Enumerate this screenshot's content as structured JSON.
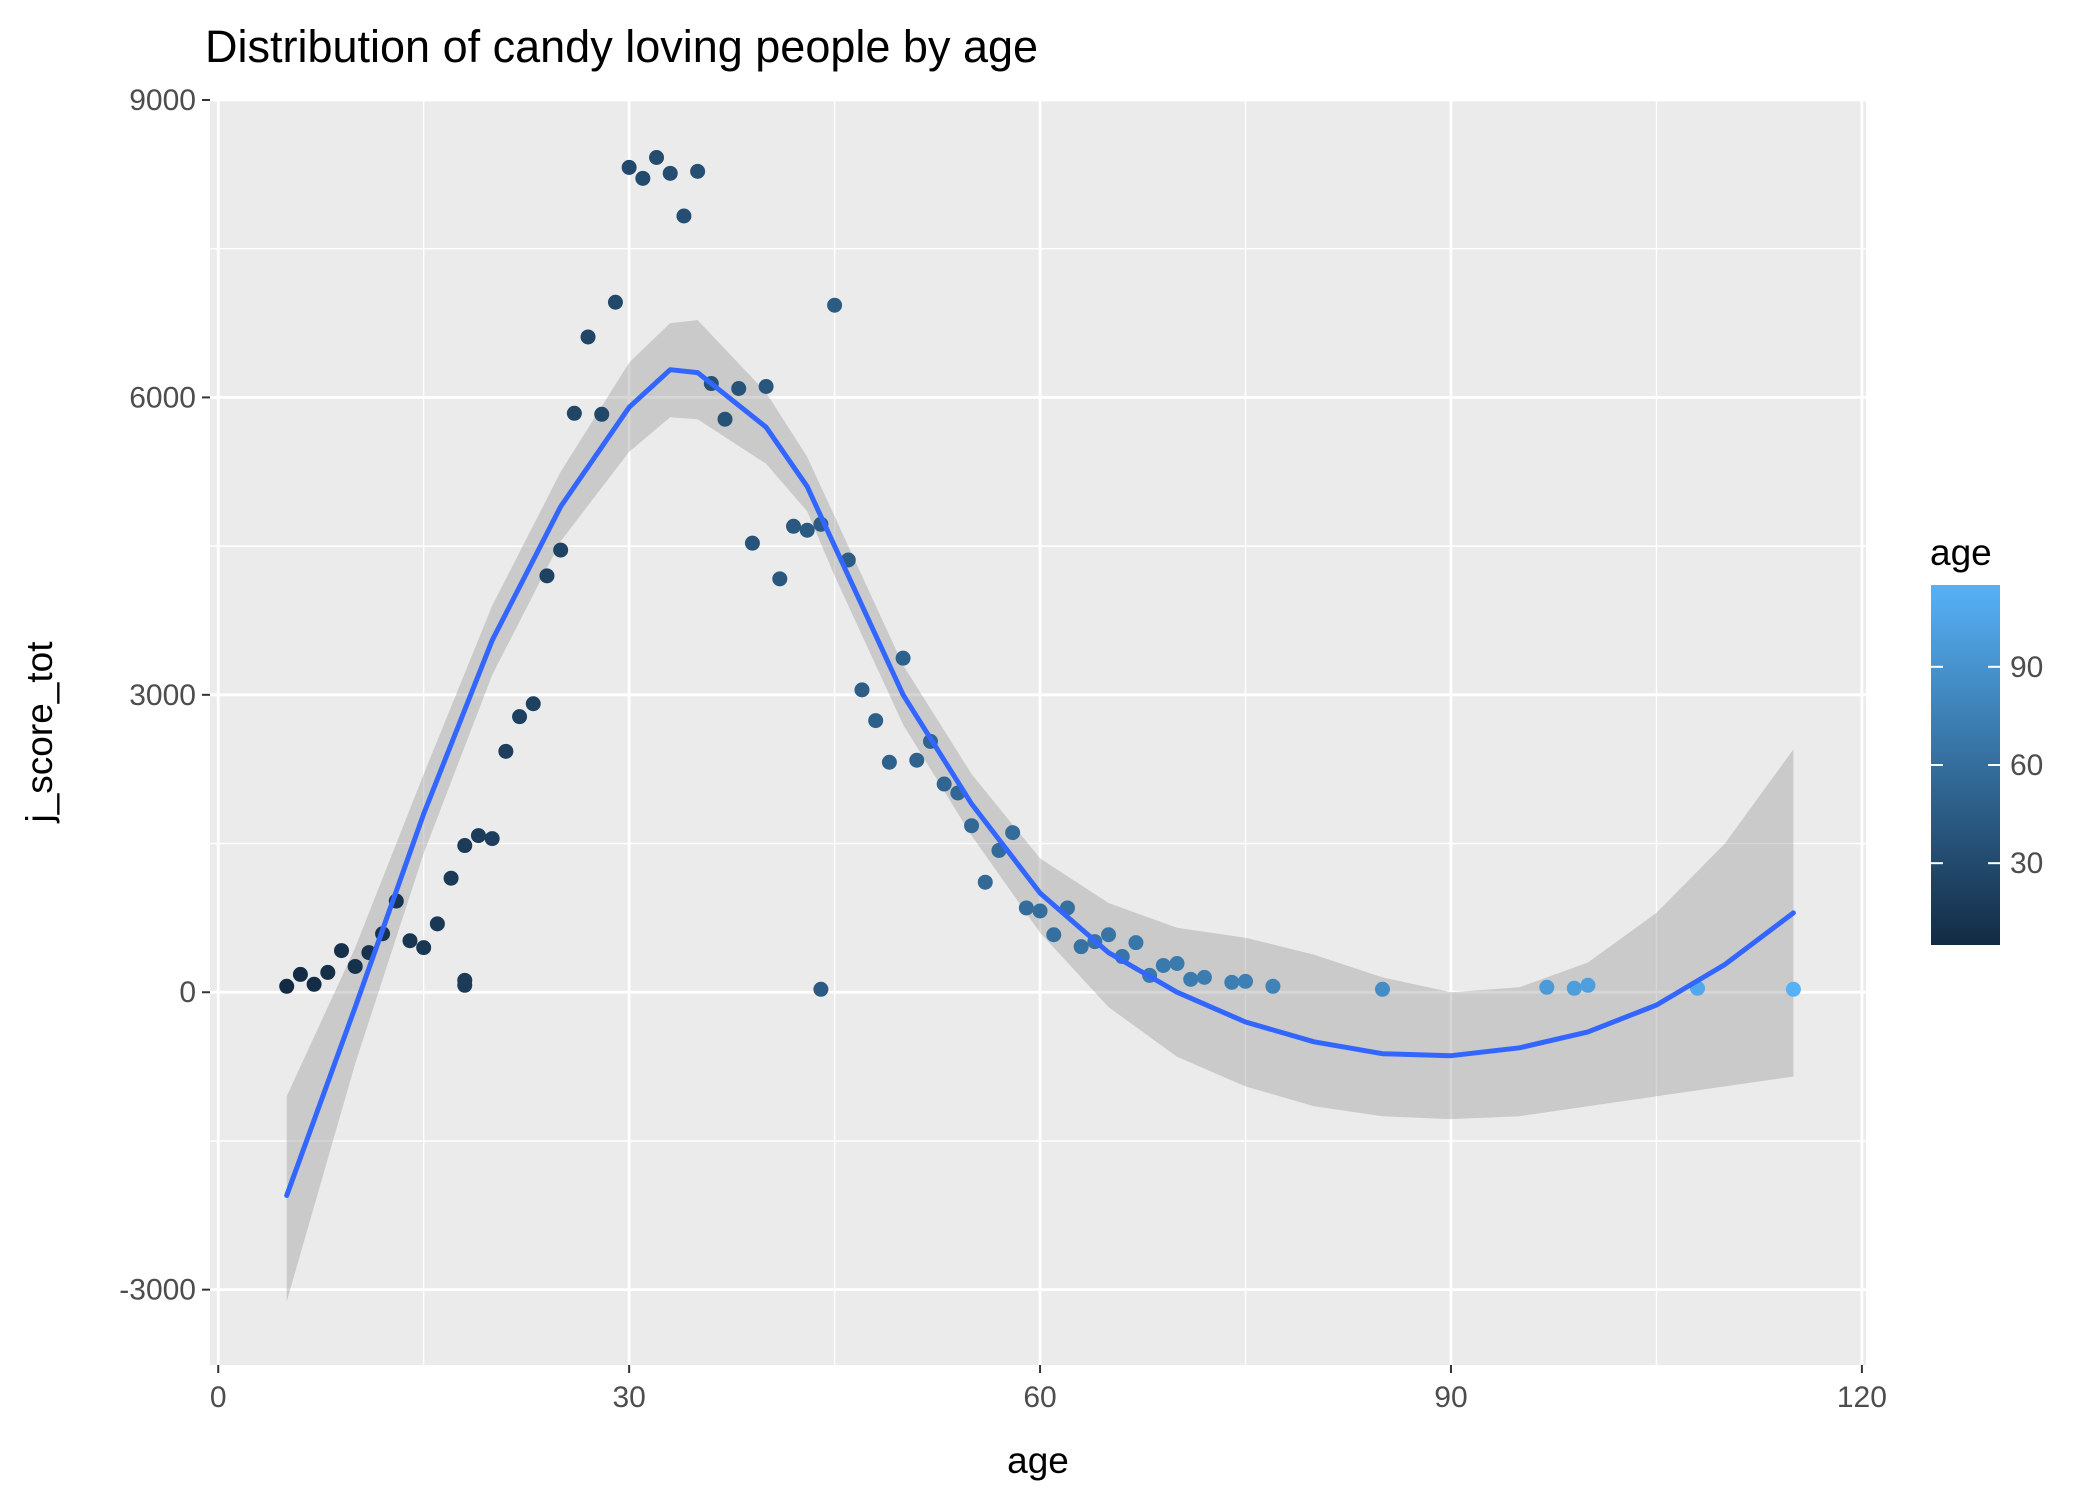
{
  "chart_data": {
    "type": "scatter",
    "title": "Distribution of candy loving people by age",
    "xlabel": "age",
    "ylabel": "j_score_tot",
    "xlim": [
      -0.6,
      120.3
    ],
    "ylim": [
      -3760,
      9000
    ],
    "x_ticks": [
      0,
      30,
      60,
      90,
      120
    ],
    "y_ticks": [
      -3000,
      0,
      3000,
      6000,
      9000
    ],
    "grid": true,
    "legend": {
      "title": "age",
      "position": "right",
      "type": "gradient",
      "color_low": "#132b43",
      "color_high": "#56b1f7",
      "range": [
        5,
        115
      ],
      "breaks": [
        30,
        60,
        90
      ]
    },
    "colors": {
      "panel_bg": "#ebebeb",
      "grid": "#ffffff",
      "smooth_line": "#3366ff",
      "ribbon": "#999999"
    },
    "series": [
      {
        "kind": "points",
        "x": [
          5,
          6,
          7,
          8,
          9,
          10,
          11,
          12,
          13,
          14,
          15,
          16,
          17,
          18,
          18,
          18,
          19,
          20,
          21,
          22,
          23,
          24,
          25,
          26,
          27,
          28,
          29,
          30,
          31,
          32,
          33,
          34,
          35,
          36,
          37,
          38,
          39,
          40,
          41,
          42,
          43,
          44,
          44,
          45,
          46,
          47,
          48,
          49,
          50,
          51,
          52,
          53,
          54,
          55,
          56,
          57,
          58,
          59,
          60,
          61,
          62,
          63,
          64,
          65,
          66,
          67,
          68,
          69,
          70,
          71,
          72,
          74,
          75,
          77,
          85,
          97,
          99,
          100,
          108,
          115
        ],
        "y": [
          60,
          180,
          80,
          200,
          420,
          260,
          400,
          590,
          920,
          520,
          450,
          690,
          1150,
          1480,
          120,
          70,
          1580,
          1550,
          2430,
          2780,
          2910,
          4200,
          4460,
          5840,
          6610,
          5830,
          6960,
          8320,
          8210,
          8420,
          8260,
          7830,
          8280,
          6140,
          5780,
          6090,
          4530,
          6110,
          4170,
          4700,
          4660,
          4720,
          30,
          6930,
          4360,
          3050,
          2740,
          2320,
          3370,
          2340,
          2530,
          2100,
          2010,
          1680,
          1110,
          1430,
          1610,
          850,
          820,
          580,
          850,
          460,
          510,
          580,
          360,
          500,
          170,
          270,
          290,
          130,
          150,
          100,
          110,
          60,
          30,
          50,
          40,
          70,
          40,
          30
        ]
      },
      {
        "kind": "smooth",
        "x": [
          5,
          10,
          15,
          20,
          25,
          30,
          33,
          35,
          40,
          43,
          45,
          50,
          55,
          60,
          65,
          70,
          75,
          80,
          85,
          90,
          95,
          100,
          105,
          110,
          115
        ],
        "y": [
          -2050,
          -150,
          1800,
          3550,
          4900,
          5900,
          6280,
          6250,
          5700,
          5100,
          4500,
          3000,
          1900,
          1000,
          400,
          0,
          -300,
          -500,
          -620,
          -640,
          -560,
          -400,
          -130,
          280,
          800
        ],
        "ymin": [
          -3120,
          -720,
          1400,
          3200,
          4550,
          5450,
          5800,
          5780,
          5330,
          4850,
          4200,
          2700,
          1580,
          600,
          -150,
          -650,
          -950,
          -1150,
          -1250,
          -1280,
          -1250,
          -1150,
          -1050,
          -950,
          -850
        ],
        "ymax": [
          -1050,
          450,
          2200,
          3900,
          5250,
          6350,
          6750,
          6780,
          6050,
          5400,
          4800,
          3300,
          2200,
          1350,
          900,
          650,
          550,
          380,
          150,
          0,
          50,
          300,
          800,
          1500,
          2450
        ]
      }
    ]
  }
}
